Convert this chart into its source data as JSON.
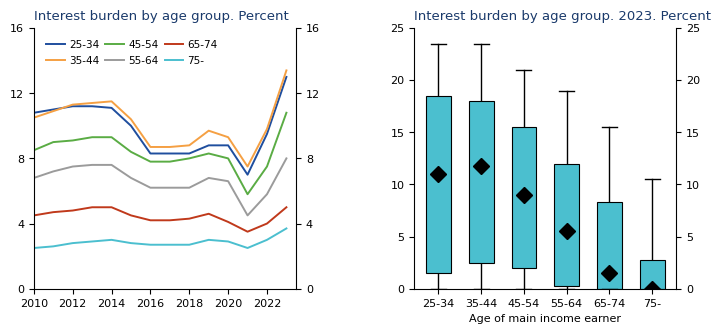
{
  "left_title": "Interest burden by age group. Percent",
  "right_title": "Interest burden by age group. 2023. Percent",
  "line_years": [
    2010,
    2011,
    2012,
    2013,
    2014,
    2015,
    2016,
    2017,
    2018,
    2019,
    2020,
    2021,
    2022,
    2023
  ],
  "line_data": {
    "25-34": [
      10.8,
      11.0,
      11.2,
      11.2,
      11.1,
      10.0,
      8.3,
      8.3,
      8.3,
      8.8,
      8.8,
      7.0,
      9.5,
      13.0
    ],
    "35-44": [
      10.5,
      10.9,
      11.3,
      11.4,
      11.5,
      10.4,
      8.7,
      8.7,
      8.8,
      9.7,
      9.3,
      7.5,
      9.8,
      13.4
    ],
    "45-54": [
      8.5,
      9.0,
      9.1,
      9.3,
      9.3,
      8.4,
      7.8,
      7.8,
      8.0,
      8.3,
      8.0,
      5.8,
      7.5,
      10.8
    ],
    "55-64": [
      6.8,
      7.2,
      7.5,
      7.6,
      7.6,
      6.8,
      6.2,
      6.2,
      6.2,
      6.8,
      6.6,
      4.5,
      5.8,
      8.0
    ],
    "65-74": [
      4.5,
      4.7,
      4.8,
      5.0,
      5.0,
      4.5,
      4.2,
      4.2,
      4.3,
      4.6,
      4.1,
      3.5,
      4.0,
      5.0
    ],
    "75-": [
      2.5,
      2.6,
      2.8,
      2.9,
      3.0,
      2.8,
      2.7,
      2.7,
      2.7,
      3.0,
      2.9,
      2.5,
      3.0,
      3.7
    ]
  },
  "line_colors": {
    "25-34": "#1f4e9e",
    "35-44": "#f5a043",
    "45-54": "#5aac44",
    "55-64": "#9b9b9b",
    "65-74": "#c0391b",
    "75-": "#4bbfcf"
  },
  "box_categories": [
    "25-34",
    "35-44",
    "45-54",
    "55-64",
    "65-74",
    "75-"
  ],
  "box_data": {
    "25-34": {
      "whisker_low": 0.0,
      "q1": 1.5,
      "q3": 18.5,
      "mean": 11.0,
      "whisker_high": 23.5
    },
    "35-44": {
      "whisker_low": 0.0,
      "q1": 2.5,
      "q3": 18.0,
      "mean": 11.8,
      "whisker_high": 23.5
    },
    "45-54": {
      "whisker_low": 0.0,
      "q1": 2.0,
      "q3": 15.5,
      "mean": 9.0,
      "whisker_high": 21.0
    },
    "55-64": {
      "whisker_low": 0.0,
      "q1": 0.3,
      "q3": 12.0,
      "mean": 5.5,
      "whisker_high": 19.0
    },
    "65-74": {
      "whisker_low": 0.0,
      "q1": 0.0,
      "q3": 8.3,
      "mean": 1.5,
      "whisker_high": 15.5
    },
    "75-": {
      "whisker_low": 0.0,
      "q1": 0.0,
      "q3": 2.8,
      "mean": 0.0,
      "whisker_high": 10.5
    }
  },
  "box_color": "#4bbfcf",
  "box_xlabel": "Age of main income earner",
  "left_ylim": [
    0,
    16
  ],
  "left_yticks": [
    0,
    4,
    8,
    12,
    16
  ],
  "right_ylim": [
    0,
    25
  ],
  "right_yticks": [
    0,
    5,
    10,
    15,
    20,
    25
  ],
  "title_color": "#1a3a6b",
  "title_fontsize": 9.5
}
